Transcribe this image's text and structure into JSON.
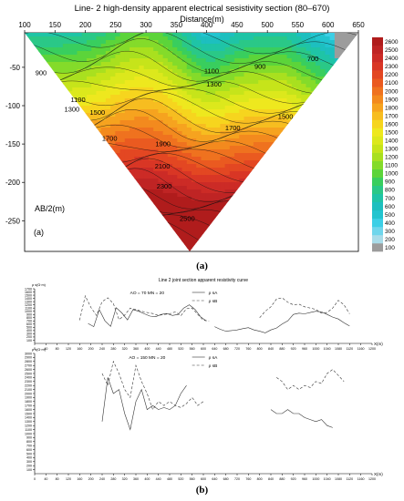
{
  "figure_a": {
    "title": "Line- 2 high-density apparent electrical sesistivity section (80–670)",
    "xlabel": "Distance(m)",
    "ylabel": "AB/2(m)",
    "panel_label": "(a)",
    "caption": "(a)"
  },
  "figure_b": {
    "caption": "(b)"
  },
  "chart_data": [
    {
      "type": "heatmap",
      "title": "Line- 2 high-density apparent electrical sesistivity section (80–670)",
      "xlabel": "Distance(m)",
      "ylabel": "AB/2(m)",
      "x_ticks": [
        100,
        150,
        200,
        250,
        300,
        350,
        400,
        450,
        500,
        550,
        600,
        650
      ],
      "y_ticks": [
        -50,
        -100,
        -150,
        -200,
        -250
      ],
      "xlim": [
        100,
        650
      ],
      "ylim": [
        -290,
        -5
      ],
      "colorbar_ticks": [
        100,
        200,
        300,
        400,
        500,
        600,
        700,
        800,
        900,
        1000,
        1100,
        1200,
        1300,
        1400,
        1500,
        1600,
        1700,
        1800,
        1900,
        2000,
        2100,
        2200,
        2300,
        2400,
        2500,
        2600
      ],
      "colorbar_colors": [
        "#9c9c9c",
        "#a9dce9",
        "#6fd6ec",
        "#3ccfe6",
        "#22c4cf",
        "#1dbfbf",
        "#1fc4a6",
        "#2ac887",
        "#39ce5e",
        "#5cd43a",
        "#84db2a",
        "#a9e01f",
        "#c6e41a",
        "#dce81c",
        "#eee81e",
        "#f6d51e",
        "#f7bd20",
        "#f6a31f",
        "#f38a1e",
        "#ef721f",
        "#ea5a20",
        "#e34722",
        "#d93625",
        "#cc2b26",
        "#bf2424",
        "#b01c1c"
      ],
      "contour_labels": [
        {
          "value": 900,
          "x": 127,
          "y": -60
        },
        {
          "value": 900,
          "x": 488,
          "y": -52
        },
        {
          "value": 700,
          "x": 575,
          "y": -42
        },
        {
          "value": 1100,
          "x": 188,
          "y": -95
        },
        {
          "value": 1300,
          "x": 178,
          "y": -108
        },
        {
          "value": 1500,
          "x": 220,
          "y": -112
        },
        {
          "value": 1100,
          "x": 408,
          "y": -58
        },
        {
          "value": 1300,
          "x": 412,
          "y": -75
        },
        {
          "value": 1700,
          "x": 240,
          "y": -146
        },
        {
          "value": 1700,
          "x": 443,
          "y": -132
        },
        {
          "value": 1500,
          "x": 530,
          "y": -117
        },
        {
          "value": 1900,
          "x": 328,
          "y": -153
        },
        {
          "value": 2100,
          "x": 327,
          "y": -182
        },
        {
          "value": 2300,
          "x": 330,
          "y": -208
        },
        {
          "value": 2500,
          "x": 368,
          "y": -250
        }
      ]
    },
    {
      "type": "line",
      "title": "Line 2 joint section apparent resistivity curve",
      "xlabel": "X(m)",
      "ylabel": "ρ s(Ω·m)",
      "annotation": "AO = 70   MN = 20",
      "x_ticks": [
        0,
        40,
        80,
        120,
        160,
        200,
        240,
        280,
        320,
        360,
        400,
        440,
        480,
        520,
        560,
        600,
        640,
        680,
        720,
        760,
        800,
        840,
        880,
        920,
        960,
        1000,
        1040,
        1080,
        1120,
        1160,
        1200
      ],
      "y_ticks": [
        0,
        100,
        200,
        300,
        400,
        500,
        600,
        700,
        800,
        900,
        1000,
        1100,
        1200,
        1300,
        1400,
        1500,
        1600,
        1700
      ],
      "xlim": [
        0,
        1200
      ],
      "ylim": [
        0,
        1700
      ],
      "series": [
        {
          "name": "ρ sA",
          "style": "solid",
          "segments": [
            [
              [
                190,
                620
              ],
              [
                210,
                520
              ],
              [
                230,
                1050
              ],
              [
                250,
                700
              ],
              [
                270,
                530
              ],
              [
                290,
                1110
              ],
              [
                310,
                950
              ],
              [
                330,
                730
              ],
              [
                350,
                1050
              ],
              [
                370,
                1000
              ],
              [
                390,
                920
              ],
              [
                410,
                850
              ],
              [
                430,
                830
              ],
              [
                450,
                900
              ],
              [
                470,
                930
              ],
              [
                490,
                870
              ],
              [
                510,
                900
              ],
              [
                530,
                1100
              ],
              [
                550,
                1200
              ],
              [
                570,
                1060
              ],
              [
                590,
                830
              ],
              [
                610,
                700
              ]
            ],
            [
              [
                640,
                520
              ],
              [
                660,
                440
              ],
              [
                680,
                380
              ],
              [
                700,
                400
              ],
              [
                720,
                420
              ],
              [
                740,
                460
              ],
              [
                760,
                490
              ],
              [
                780,
                420
              ],
              [
                800,
                380
              ],
              [
                820,
                330
              ],
              [
                840,
                420
              ],
              [
                860,
                480
              ],
              [
                880,
                600
              ],
              [
                900,
                700
              ],
              [
                920,
                900
              ],
              [
                940,
                940
              ],
              [
                960,
                920
              ],
              [
                980,
                960
              ],
              [
                1000,
                1000
              ],
              [
                1020,
                980
              ],
              [
                1040,
                900
              ],
              [
                1060,
                820
              ],
              [
                1080,
                760
              ],
              [
                1100,
                640
              ],
              [
                1120,
                540
              ]
            ]
          ]
        },
        {
          "name": "ρ sB",
          "style": "dashed",
          "segments": [
            [
              [
                160,
                720
              ],
              [
                180,
                1480
              ],
              [
                200,
                1120
              ],
              [
                220,
                870
              ],
              [
                240,
                1300
              ],
              [
                260,
                1420
              ],
              [
                280,
                1240
              ],
              [
                300,
                740
              ],
              [
                320,
                880
              ],
              [
                340,
                1100
              ],
              [
                360,
                1050
              ],
              [
                380,
                1000
              ],
              [
                400,
                960
              ],
              [
                420,
                930
              ],
              [
                440,
                870
              ],
              [
                460,
                900
              ],
              [
                480,
                920
              ],
              [
                500,
                980
              ],
              [
                520,
                860
              ],
              [
                540,
                1080
              ],
              [
                560,
                1100
              ],
              [
                580,
                900
              ],
              [
                600,
                720
              ],
              [
                620,
                700
              ]
            ],
            [
              [
                800,
                800
              ],
              [
                820,
                1000
              ],
              [
                840,
                1140
              ],
              [
                860,
                1380
              ],
              [
                880,
                1420
              ],
              [
                900,
                1280
              ],
              [
                920,
                1200
              ],
              [
                940,
                1220
              ],
              [
                960,
                1140
              ],
              [
                980,
                1100
              ],
              [
                1000,
                1060
              ],
              [
                1020,
                940
              ],
              [
                1040,
                960
              ],
              [
                1060,
                1100
              ],
              [
                1080,
                1340
              ],
              [
                1100,
                1200
              ],
              [
                1120,
                920
              ]
            ]
          ]
        }
      ]
    },
    {
      "type": "line",
      "title": "",
      "xlabel": "X(m)",
      "ylabel": "ρ s(Ω·m)",
      "annotation": "AO = 150   MN = 20",
      "x_ticks": [
        0,
        40,
        80,
        120,
        160,
        200,
        240,
        280,
        320,
        360,
        400,
        440,
        480,
        520,
        560,
        600,
        640,
        680,
        720,
        760,
        800,
        840,
        880,
        920,
        960,
        1000,
        1040,
        1080,
        1120,
        1160,
        1200
      ],
      "y_ticks": [
        0,
        100,
        200,
        300,
        400,
        500,
        600,
        700,
        800,
        900,
        1000,
        1100,
        1200,
        1300,
        1400,
        1500,
        1600,
        1700,
        1800,
        1900,
        2000,
        2100,
        2200,
        2300,
        2400,
        2500,
        2600,
        2700,
        2800,
        2900,
        3000
      ],
      "xlim": [
        0,
        1200
      ],
      "ylim": [
        0,
        3000
      ],
      "series": [
        {
          "name": "ρ sA",
          "style": "solid",
          "segments": [
            [
              [
                240,
                1300
              ],
              [
                260,
                2400
              ],
              [
                280,
                2000
              ],
              [
                300,
                2100
              ],
              [
                320,
                1500
              ],
              [
                340,
                1100
              ],
              [
                360,
                1800
              ],
              [
                380,
                2100
              ],
              [
                400,
                1600
              ],
              [
                420,
                1700
              ],
              [
                440,
                1600
              ],
              [
                460,
                1650
              ],
              [
                480,
                1600
              ],
              [
                500,
                1700
              ],
              [
                520,
                2000
              ],
              [
                540,
                2200
              ]
            ],
            [
              [
                840,
                1600
              ],
              [
                860,
                1500
              ],
              [
                880,
                1500
              ],
              [
                900,
                1600
              ],
              [
                920,
                1500
              ],
              [
                940,
                1500
              ],
              [
                960,
                1400
              ],
              [
                980,
                1350
              ],
              [
                1000,
                1300
              ],
              [
                1020,
                1350
              ],
              [
                1040,
                1200
              ],
              [
                1060,
                1150
              ]
            ]
          ]
        },
        {
          "name": "ρ sB",
          "style": "dashed",
          "segments": [
            [
              [
                240,
                2500
              ],
              [
                260,
                2200
              ],
              [
                280,
                2800
              ],
              [
                300,
                2500
              ],
              [
                320,
                2100
              ],
              [
                340,
                1900
              ],
              [
                360,
                2700
              ],
              [
                380,
                2300
              ],
              [
                400,
                2000
              ],
              [
                420,
                1600
              ],
              [
                440,
                1800
              ],
              [
                460,
                1700
              ],
              [
                480,
                1800
              ],
              [
                500,
                1700
              ],
              [
                520,
                1650
              ],
              [
                540,
                1750
              ],
              [
                560,
                1900
              ],
              [
                580,
                1700
              ],
              [
                600,
                1800
              ]
            ],
            [
              [
                860,
                2400
              ],
              [
                880,
                2300
              ],
              [
                900,
                2100
              ],
              [
                920,
                2200
              ],
              [
                940,
                2100
              ],
              [
                960,
                2200
              ],
              [
                980,
                2150
              ],
              [
                1000,
                2300
              ],
              [
                1020,
                2250
              ],
              [
                1040,
                2500
              ],
              [
                1060,
                2600
              ],
              [
                1080,
                2450
              ],
              [
                1100,
                2300
              ]
            ]
          ]
        }
      ]
    }
  ]
}
